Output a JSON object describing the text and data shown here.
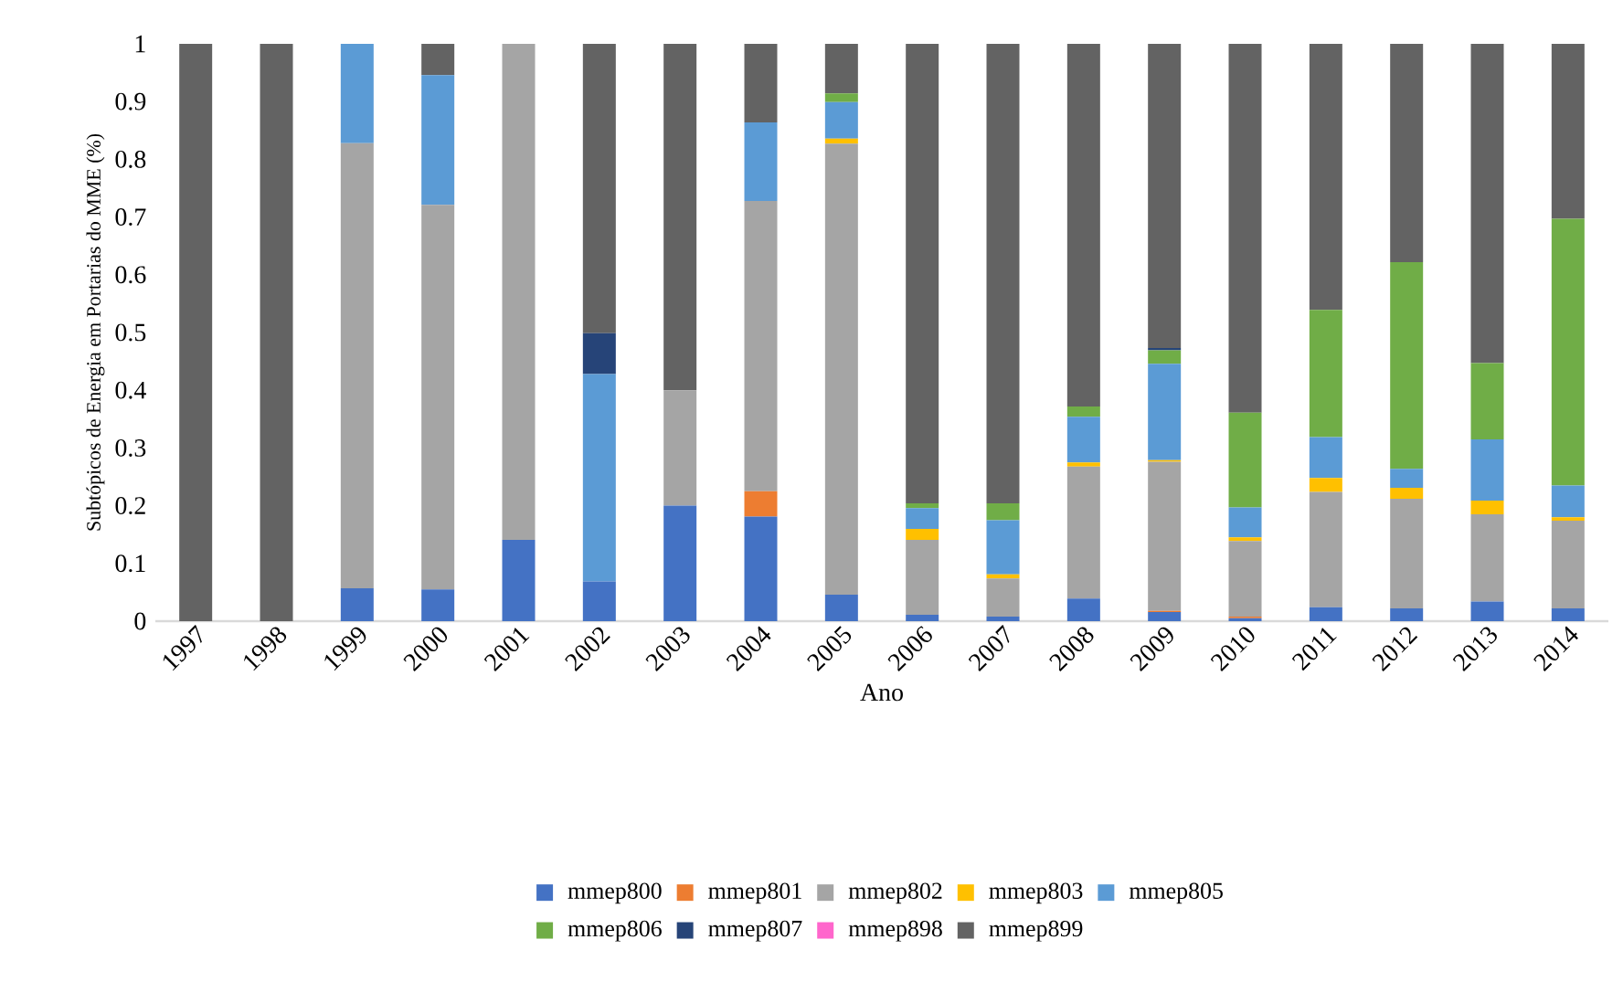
{
  "chart_data": {
    "type": "bar",
    "stacked": true,
    "xlabel": "Ano",
    "ylabel": "Subtópicos de Energia em Portarias do MME (%)",
    "categories": [
      "1997",
      "1998",
      "1999",
      "2000",
      "2001",
      "2002",
      "2003",
      "2004",
      "2005",
      "2006",
      "2007",
      "2008",
      "2009",
      "2010",
      "2011",
      "2012",
      "2013",
      "2014"
    ],
    "series": [
      {
        "name": "mmep800",
        "color": "#4472c4",
        "values": [
          0,
          0,
          0.057,
          0.055,
          0.141,
          0.069,
          0.2,
          0.181,
          0.046,
          0.011,
          0.008,
          0.039,
          0.016,
          0.005,
          0.024,
          0.022,
          0.034,
          0.022
        ]
      },
      {
        "name": "mmep801",
        "color": "#ed7d31",
        "values": [
          0,
          0,
          0,
          0,
          0,
          0,
          0,
          0.044,
          0,
          0,
          0,
          0,
          0.002,
          0.003,
          0,
          0,
          0,
          0
        ]
      },
      {
        "name": "mmep802",
        "color": "#a5a5a5",
        "values": [
          0,
          0,
          0.771,
          0.666,
          0.859,
          0,
          0.2,
          0.503,
          0.781,
          0.13,
          0.066,
          0.229,
          0.258,
          0.131,
          0.2,
          0.19,
          0.151,
          0.152
        ]
      },
      {
        "name": "mmep803",
        "color": "#ffc000",
        "values": [
          0,
          0,
          0,
          0,
          0,
          0,
          0,
          0,
          0.009,
          0.019,
          0.007,
          0.007,
          0.003,
          0.006,
          0.024,
          0.019,
          0.024,
          0.006
        ]
      },
      {
        "name": "mmep805",
        "color": "#5b9bd5",
        "values": [
          0,
          0,
          0.172,
          0.225,
          0,
          0.359,
          0,
          0.136,
          0.063,
          0.036,
          0.094,
          0.079,
          0.167,
          0.052,
          0.071,
          0.033,
          0.106,
          0.055
        ]
      },
      {
        "name": "mmep806",
        "color": "#70ad47",
        "values": [
          0,
          0,
          0,
          0,
          0,
          0,
          0,
          0,
          0.015,
          0.008,
          0.029,
          0.018,
          0.023,
          0.164,
          0.22,
          0.358,
          0.132,
          0.462
        ]
      },
      {
        "name": "mmep807",
        "color": "#264478",
        "values": [
          0,
          0,
          0,
          0,
          0,
          0.071,
          0,
          0,
          0,
          0,
          0,
          0,
          0.004,
          0,
          0,
          0,
          0,
          0
        ]
      },
      {
        "name": "mmep898",
        "color": "#ff66cc",
        "values": [
          0,
          0,
          0,
          0,
          0,
          0,
          0,
          0,
          0,
          0,
          0,
          0,
          0,
          0,
          0,
          0,
          0,
          0
        ]
      },
      {
        "name": "mmep899",
        "color": "#636363",
        "values": [
          1,
          1,
          0,
          0.054,
          0,
          0.501,
          0.6,
          0.136,
          0.086,
          0.796,
          0.796,
          0.628,
          0.527,
          0.639,
          0.461,
          0.378,
          0.553,
          0.303
        ]
      }
    ],
    "ylim": [
      0,
      1
    ],
    "yticks": [
      0,
      0.1,
      0.2,
      0.3,
      0.4,
      0.5,
      0.6,
      0.7,
      0.8,
      0.9,
      1
    ],
    "legend": "bottom",
    "grid": false
  }
}
